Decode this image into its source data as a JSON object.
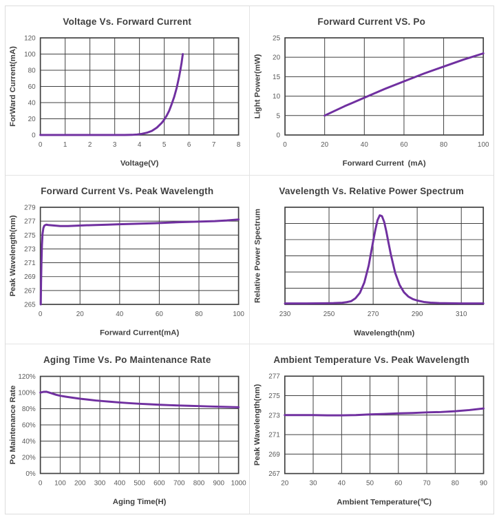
{
  "page": {
    "background": "#ffffff",
    "card_border_color": "#dcdcdc",
    "panel_divider_color": "#e3e3e3"
  },
  "theme": {
    "line_color": "#7030a0",
    "grid_color": "#3f3f3f",
    "plot_border_color": "#3f3f3f",
    "tick_label_color": "#595959",
    "axis_label_color": "#3f3f3f",
    "title_color": "#3f3f3f"
  },
  "chart_data": [
    {
      "type": "line",
      "title": "Voltage Vs. Forward Current",
      "xlabel": "Voltage(V)",
      "ylabel": "ForWard Current(mA)",
      "xlim": [
        0,
        8
      ],
      "ylim": [
        0,
        120
      ],
      "xticks": [
        0,
        1,
        2,
        3,
        4,
        5,
        6,
        7,
        8
      ],
      "xtick_labels": [
        "0",
        "1",
        "2",
        "3",
        "4",
        "5",
        "6",
        "7",
        "8"
      ],
      "yticks": [
        0,
        20,
        40,
        60,
        80,
        100,
        120
      ],
      "ytick_labels": [
        "0",
        "20",
        "40",
        "60",
        "80",
        "100",
        "120"
      ],
      "grid": true,
      "legend": false,
      "series": [
        {
          "name": "forward-current",
          "points": [
            [
              0,
              0
            ],
            [
              0.5,
              0
            ],
            [
              1,
              0
            ],
            [
              1.5,
              0
            ],
            [
              2,
              0
            ],
            [
              2.5,
              0
            ],
            [
              3,
              0
            ],
            [
              3.4,
              0
            ],
            [
              3.7,
              0.2
            ],
            [
              3.9,
              0.6
            ],
            [
              4.1,
              1.4
            ],
            [
              4.3,
              2.8
            ],
            [
              4.5,
              5
            ],
            [
              4.7,
              9
            ],
            [
              4.9,
              15
            ],
            [
              5.0,
              19
            ],
            [
              5.1,
              24
            ],
            [
              5.2,
              30
            ],
            [
              5.3,
              38
            ],
            [
              5.4,
              47
            ],
            [
              5.5,
              58
            ],
            [
              5.6,
              72
            ],
            [
              5.65,
              80
            ],
            [
              5.7,
              89
            ],
            [
              5.75,
              100
            ]
          ]
        }
      ]
    },
    {
      "type": "line",
      "title": "Forward Current VS. Po",
      "xlabel": "Forward Current (mA)",
      "ylabel": "Light Power(mW)",
      "xlim": [
        0,
        100
      ],
      "ylim": [
        0,
        25
      ],
      "xticks": [
        0,
        20,
        40,
        60,
        80,
        100
      ],
      "xtick_labels": [
        "0",
        "20",
        "40",
        "60",
        "80",
        "100"
      ],
      "yticks": [
        0,
        5,
        10,
        15,
        20,
        25
      ],
      "ytick_labels": [
        "0",
        "5",
        "10",
        "15",
        "20",
        "25"
      ],
      "grid": true,
      "legend": false,
      "series": [
        {
          "name": "light-power",
          "points": [
            [
              20,
              5
            ],
            [
              30,
              7.4
            ],
            [
              40,
              9.6
            ],
            [
              50,
              11.8
            ],
            [
              60,
              13.8
            ],
            [
              70,
              15.8
            ],
            [
              80,
              17.6
            ],
            [
              90,
              19.4
            ],
            [
              100,
              21
            ]
          ]
        }
      ]
    },
    {
      "type": "line",
      "title": "Forward Current Vs. Peak Wavelength",
      "xlabel": "Forward Current(mA)",
      "ylabel": "Peak Wavelength(nm)",
      "xlim": [
        0,
        100
      ],
      "ylim": [
        265,
        279
      ],
      "xticks": [
        0,
        20,
        40,
        60,
        80,
        100
      ],
      "xtick_labels": [
        "0",
        "20",
        "40",
        "60",
        "80",
        "100"
      ],
      "yticks": [
        265,
        267,
        269,
        271,
        273,
        275,
        277,
        279
      ],
      "ytick_labels": [
        "265",
        "267",
        "269",
        "271",
        "273",
        "275",
        "277",
        "279"
      ],
      "grid": true,
      "legend": false,
      "series": [
        {
          "name": "peak-wavelength",
          "points": [
            [
              0.2,
              265
            ],
            [
              0.35,
              268
            ],
            [
              0.55,
              271
            ],
            [
              0.8,
              273.5
            ],
            [
              1.1,
              275.2
            ],
            [
              1.5,
              276
            ],
            [
              2,
              276.35
            ],
            [
              2.5,
              276.45
            ],
            [
              3,
              276.5
            ],
            [
              4,
              276.45
            ],
            [
              6,
              276.4
            ],
            [
              8,
              276.35
            ],
            [
              10,
              276.3
            ],
            [
              14,
              276.3
            ],
            [
              18,
              276.35
            ],
            [
              22,
              276.4
            ],
            [
              28,
              276.45
            ],
            [
              34,
              276.5
            ],
            [
              40,
              276.55
            ],
            [
              46,
              276.6
            ],
            [
              52,
              276.65
            ],
            [
              58,
              276.7
            ],
            [
              64,
              276.78
            ],
            [
              70,
              276.85
            ],
            [
              76,
              276.9
            ],
            [
              82,
              276.95
            ],
            [
              88,
              277.0
            ],
            [
              94,
              277.1
            ],
            [
              100,
              277.25
            ]
          ]
        }
      ]
    },
    {
      "type": "line",
      "title": "Vavelength Vs. Relative Power Spectrum",
      "xlabel": "Wavelength(nm)",
      "ylabel": "Relative Power Spectrum",
      "xlim": [
        230,
        320
      ],
      "ylim": [
        0,
        6
      ],
      "xticks": [
        230,
        250,
        270,
        290,
        310
      ],
      "xtick_labels": [
        "230",
        "250",
        "270",
        "290",
        "310"
      ],
      "yticks": [
        0,
        1,
        2,
        3,
        4,
        5,
        6
      ],
      "ytick_labels": [],
      "grid": true,
      "legend": false,
      "series": [
        {
          "name": "relative-power",
          "points": [
            [
              230,
              0.06
            ],
            [
              240,
              0.06
            ],
            [
              248,
              0.07
            ],
            [
              252,
              0.08
            ],
            [
              256,
              0.1
            ],
            [
              258,
              0.14
            ],
            [
              260,
              0.2
            ],
            [
              262,
              0.38
            ],
            [
              264,
              0.72
            ],
            [
              266,
              1.35
            ],
            [
              268,
              2.4
            ],
            [
              270,
              3.9
            ],
            [
              271,
              4.6
            ],
            [
              272,
              5.2
            ],
            [
              273,
              5.5
            ],
            [
              274,
              5.45
            ],
            [
              275,
              5.1
            ],
            [
              276,
              4.5
            ],
            [
              277,
              3.8
            ],
            [
              278,
              3.1
            ],
            [
              280,
              1.95
            ],
            [
              282,
              1.2
            ],
            [
              284,
              0.75
            ],
            [
              286,
              0.48
            ],
            [
              288,
              0.33
            ],
            [
              290,
              0.24
            ],
            [
              293,
              0.15
            ],
            [
              296,
              0.11
            ],
            [
              300,
              0.08
            ],
            [
              305,
              0.07
            ],
            [
              310,
              0.06
            ],
            [
              315,
              0.06
            ],
            [
              320,
              0.06
            ]
          ]
        }
      ]
    },
    {
      "type": "line",
      "title": "Aging Time Vs. Po Maintenance Rate",
      "xlabel": "Aging Time(H)",
      "ylabel": "Po Maintenance Rate",
      "xlim": [
        0,
        1000
      ],
      "ylim": [
        0,
        120
      ],
      "xticks": [
        0,
        100,
        200,
        300,
        400,
        500,
        600,
        700,
        800,
        900,
        1000
      ],
      "xtick_labels": [
        "0",
        "100",
        "200",
        "300",
        "400",
        "500",
        "600",
        "700",
        "800",
        "900",
        "1000"
      ],
      "yticks": [
        0,
        20,
        40,
        60,
        80,
        100,
        120
      ],
      "ytick_labels": [
        "0%",
        "20%",
        "40%",
        "60%",
        "80%",
        "100%",
        "120%"
      ],
      "grid": true,
      "legend": false,
      "series": [
        {
          "name": "po-maintenance-rate",
          "points": [
            [
              0,
              100
            ],
            [
              15,
              100.8
            ],
            [
              30,
              101
            ],
            [
              45,
              100
            ],
            [
              60,
              98.8
            ],
            [
              80,
              97.2
            ],
            [
              100,
              96
            ],
            [
              130,
              94.8
            ],
            [
              160,
              93.7
            ],
            [
              200,
              92.4
            ],
            [
              240,
              91.3
            ],
            [
              280,
              90.2
            ],
            [
              320,
              89.3
            ],
            [
              360,
              88.5
            ],
            [
              400,
              87.7
            ],
            [
              450,
              86.9
            ],
            [
              500,
              86.1
            ],
            [
              550,
              85.5
            ],
            [
              600,
              84.9
            ],
            [
              650,
              84.4
            ],
            [
              700,
              84.0
            ],
            [
              750,
              83.6
            ],
            [
              800,
              83.2
            ],
            [
              850,
              82.8
            ],
            [
              900,
              82.5
            ],
            [
              950,
              82.1
            ],
            [
              1000,
              81.8
            ]
          ]
        }
      ]
    },
    {
      "type": "line",
      "title": "Ambient Temperature Vs. Peak Wavelength",
      "xlabel": "Ambient Temperature(℃)",
      "ylabel": "Peak Wavelength(nm)",
      "xlim": [
        20,
        90
      ],
      "ylim": [
        267,
        277
      ],
      "xticks": [
        20,
        30,
        40,
        50,
        60,
        70,
        80,
        90
      ],
      "xtick_labels": [
        "20",
        "30",
        "40",
        "50",
        "60",
        "70",
        "80",
        "90"
      ],
      "yticks": [
        267,
        269,
        271,
        273,
        275,
        277
      ],
      "ytick_labels": [
        "267",
        "269",
        "271",
        "273",
        "275",
        "277"
      ],
      "grid": true,
      "legend": false,
      "series": [
        {
          "name": "peak-wavelength-temp",
          "points": [
            [
              20,
              273
            ],
            [
              25,
              273
            ],
            [
              30,
              273
            ],
            [
              35,
              272.98
            ],
            [
              40,
              272.98
            ],
            [
              45,
              273.0
            ],
            [
              50,
              273.08
            ],
            [
              55,
              273.12
            ],
            [
              60,
              273.18
            ],
            [
              65,
              273.22
            ],
            [
              70,
              273.28
            ],
            [
              75,
              273.32
            ],
            [
              80,
              273.4
            ],
            [
              85,
              273.52
            ],
            [
              90,
              273.68
            ]
          ]
        }
      ]
    }
  ]
}
